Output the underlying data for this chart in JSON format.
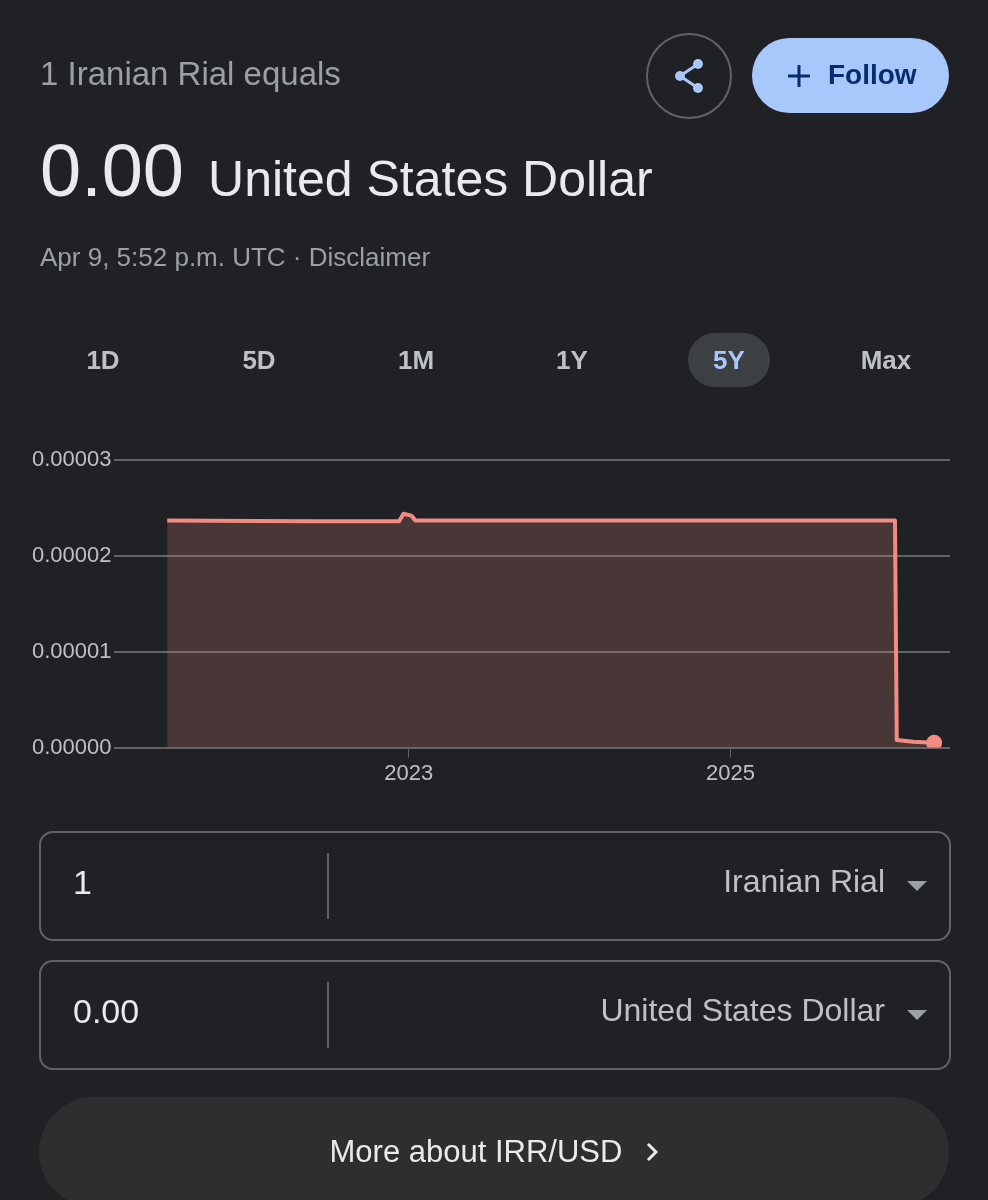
{
  "chart_data": {
    "type": "area",
    "title": "1 Iranian Rial equals",
    "x": [
      "2021-07-01",
      "2022-06-01",
      "2022-12-10",
      "2022-12-20",
      "2023-01-07",
      "2023-01-16",
      "2023-06-01",
      "2024-06-01",
      "2026-01-10",
      "2026-01-14",
      "2026-02-20",
      "2026-04-09"
    ],
    "series": [
      {
        "color": "#f28b82",
        "values": [
          2.37e-05,
          2.36e-05,
          2.36e-05,
          2.44e-05,
          2.42e-05,
          2.37e-05,
          2.37e-05,
          2.37e-05,
          2.37e-05,
          8e-07,
          6e-07,
          5e-07
        ]
      }
    ],
    "xlim": [
      "2021-03-01",
      "2026-05-15"
    ],
    "xticks": [
      "2023",
      "2025"
    ],
    "ylim": [
      0,
      3e-05
    ],
    "yticks": [
      {
        "value": 0,
        "label": "0.00000"
      },
      {
        "value": 1e-05,
        "label": "0.00001"
      },
      {
        "value": 2e-05,
        "label": "0.00002"
      },
      {
        "value": 3e-05,
        "label": "0.00003"
      }
    ],
    "grid": "y",
    "legend": false,
    "annotations": [
      "0.00",
      "United States Dollar",
      "Apr 9, 5:52 p.m. UTC · Disclaimer",
      "Follow",
      "1D",
      "5D",
      "1M",
      "1Y",
      "5Y",
      "Max",
      "1",
      "Iranian Rial",
      "0.00",
      "United States Dollar",
      "More about IRR/USD"
    ]
  }
}
